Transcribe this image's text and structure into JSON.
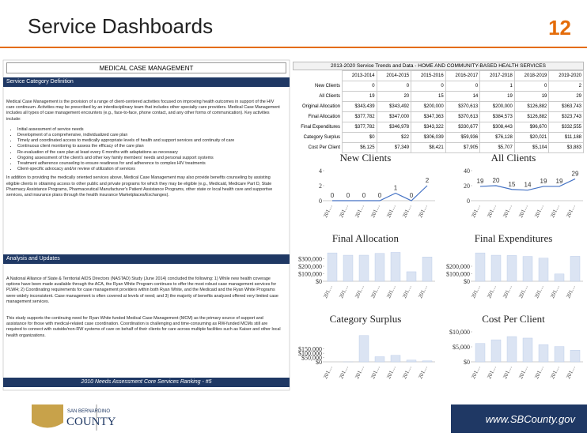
{
  "header": {
    "title": "Service Dashboards",
    "page_number": "12"
  },
  "left": {
    "section_title": "MEDICAL CASE MANAGEMENT",
    "definition_heading": "Service Category Definition",
    "definition_paragraph": "Medical Case Management is the provision of a range of client-centered activities focused on improving health outcomes in support of the HIV care continuum. Activities may be prescribed by an interdisciplinary team that includes other specialty care providers. Medical Case Management includes all types of case management encounters (e.g., face-to-face, phone contact, and any other forms of communication). Key activities include:",
    "bullets": [
      "Initial assessment of service needs",
      "Development of a comprehensive, individualized care plan",
      "Timely and coordinated access to medically appropriate levels of health and support services and continuity of care",
      "Continuous client monitoring to assess the efficacy of the care plan",
      "Re-evaluation of the care plan at least every 6 months with adaptations as necessary",
      "Ongoing assessment of the client's and other key family members' needs and personal support systems",
      "Treatment adherence counseling to ensure readiness for and adherence to complex HIV treatments",
      "Client-specific advocacy and/or review of utilization of services"
    ],
    "benefits_paragraph": "In addition to providing the medically oriented services above, Medical Case Management may also provide benefits counseling by assisting eligible clients in obtaining access to other public and private programs for which they may be eligible (e.g., Medicaid, Medicare Part D, State Pharmacy Assistance Programs, Pharmaceutical Manufacturer's Patient Assistance Programs, other state or local health care and supportive services, and insurance plans through the health insurance Marketplaces/Exchanges).",
    "analysis_heading": "Analysis and Updates",
    "analysis_paragraphs": [
      "A National Alliance of State & Territorial AIDS Directors (NASTAD) Study (June 2014) concluded the following: 1) While new health coverage options have been made available through the ACA, the Ryan White Program continues to offer the most robust case management services for PLWH; 2) Coordinating requirements for case management providers within both Ryan White, and the Medicaid and the Ryan White Programs were widely inconsistent. Case management is often covered at levels of need; and 3) the majority of benefits analyzed offered very limited case management services.",
      "This study supports the continuing need for Ryan White funded Medical Case Management (MCM) as the primary source of support and assistance for those with medical-related case coordination. Coordination is challenging and time-consuming as RW-funded MCMs still are required to connect with outside/non-RW systems of care on behalf of their clients for care across multiple facilities such as Kaiser and other local health organizations."
    ],
    "footer_bar": "2010 Needs Assessment Core Services Ranking - #5"
  },
  "table": {
    "title": "2013-2020 Service Trends and Data - HOME AND COMMUNITY-BASED HEALTH SERVICES",
    "columns": [
      "2013-2014",
      "2014-2015",
      "2015-2016",
      "2016-2017",
      "2017-2018",
      "2018-2019",
      "2019-2020"
    ],
    "rows": [
      {
        "label": "New Clients",
        "cells": [
          "0",
          "0",
          "0",
          "0",
          "1",
          "0",
          "2"
        ]
      },
      {
        "label": "All Clients",
        "cells": [
          "19",
          "20",
          "15",
          "14",
          "19",
          "19",
          "29"
        ]
      },
      {
        "label": "Original Allocation",
        "cells": [
          "$343,439",
          "$343,492",
          "$200,000",
          "$370,613",
          "$200,000",
          "$126,882",
          "$363,743"
        ]
      },
      {
        "label": "Final Allocation",
        "cells": [
          "$377,782",
          "$347,000",
          "$347,363",
          "$370,613",
          "$384,573",
          "$126,882",
          "$323,743"
        ]
      },
      {
        "label": "Final Expenditures",
        "cells": [
          "$377,782",
          "$346,978",
          "$343,322",
          "$330,677",
          "$308,443",
          "$96,670",
          "$332,555"
        ]
      },
      {
        "label": "Category Surplus",
        "cells": [
          "$0",
          "$22",
          "$306,039",
          "$59,936",
          "$76,128",
          "$20,021",
          "$11,188"
        ]
      },
      {
        "label": "Cost Per Client",
        "cells": [
          "$6,125",
          "$7,349",
          "$8,421",
          "$7,905",
          "$5,707",
          "$5,104",
          "$3,883"
        ]
      }
    ]
  },
  "chart_data": [
    {
      "type": "line",
      "title": "New Clients",
      "categories": [
        "201…",
        "201…",
        "201…",
        "201…",
        "201…",
        "201…",
        "201…"
      ],
      "values": [
        0,
        0,
        0,
        0,
        1,
        0,
        2
      ],
      "color": "#4472c4",
      "ylim": [
        0,
        4
      ],
      "yticks": [
        0,
        2,
        4
      ]
    },
    {
      "type": "line",
      "title": "All Clients",
      "categories": [
        "201…",
        "201…",
        "201…",
        "201…",
        "201…",
        "201…",
        "201…"
      ],
      "values": [
        19,
        20,
        15,
        14,
        19,
        19,
        29
      ],
      "color": "#4472c4",
      "ylim": [
        0,
        40
      ],
      "yticks": [
        0,
        20,
        40
      ]
    },
    {
      "type": "bar",
      "title": "Final Allocation",
      "categories": [
        "201…",
        "201…",
        "201…",
        "201…",
        "201…",
        "201…",
        "201…"
      ],
      "values": [
        377782,
        347000,
        347363,
        370613,
        384573,
        126882,
        323743
      ],
      "color": "#dbe4f3",
      "ylim": [
        0,
        400000
      ],
      "yticks": [
        {
          "value": 0,
          "label": "$0"
        },
        {
          "value": 100000,
          "label": "$100,000"
        },
        {
          "value": 200000,
          "label": "$200,000"
        },
        {
          "value": 300000,
          "label": "$300,000"
        }
      ]
    },
    {
      "type": "bar",
      "title": "Final Expenditures",
      "categories": [
        "201…",
        "201…",
        "201…",
        "201…",
        "201…",
        "201…",
        "201…"
      ],
      "values": [
        377782,
        346978,
        343322,
        330677,
        308443,
        96670,
        332555
      ],
      "color": "#dbe4f3",
      "ylim": [
        0,
        400000
      ],
      "yticks": [
        {
          "value": 0,
          "label": "$0"
        },
        {
          "value": 100000,
          "label": "$100,000"
        },
        {
          "value": 200000,
          "label": "$200,000"
        }
      ]
    },
    {
      "type": "bar",
      "title": "Category Surplus",
      "categories": [
        "201…",
        "201…",
        "201…",
        "201…",
        "201…",
        "201…",
        "201…"
      ],
      "values": [
        0,
        22,
        306039,
        59936,
        76128,
        20021,
        11188
      ],
      "color": "#dbe4f3",
      "ylim": [
        0,
        350000
      ],
      "yticks": [
        {
          "value": 0,
          "label": "$0"
        },
        {
          "value": 50000,
          "label": "$50,000"
        },
        {
          "value": 100000,
          "label": "$100,000"
        },
        {
          "value": 150000,
          "label": "$150,000"
        }
      ]
    },
    {
      "type": "bar",
      "title": "Cost Per Client",
      "categories": [
        "201…",
        "201…",
        "201…",
        "201…",
        "201…",
        "201…",
        "201…"
      ],
      "values": [
        6125,
        7349,
        8421,
        7905,
        5707,
        5104,
        3883
      ],
      "color": "#dbe4f3",
      "ylim": [
        0,
        10000
      ],
      "yticks": [
        {
          "value": 0,
          "label": "$0"
        },
        {
          "value": 5000,
          "label": "$5,000"
        },
        {
          "value": 10000,
          "label": "$10,000"
        }
      ]
    }
  ],
  "footer": {
    "logo_top": "SAN BERNARDINO",
    "logo_bottom": "COUNTY",
    "url": "www.SBCounty.gov"
  }
}
